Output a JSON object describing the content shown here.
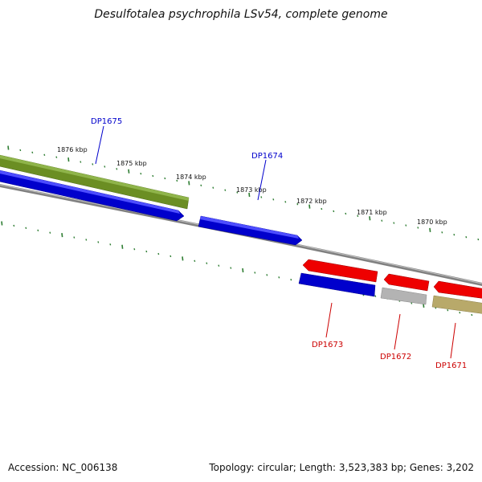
{
  "title": "Desulfotalea psychrophila LSv54, complete genome",
  "footer": {
    "accession": "Accession: NC_006138",
    "summary": "Topology: circular; Length: 3,523,383 bp; Genes: 3,202"
  },
  "colors": {
    "forward_gene": "#0000cc",
    "reverse_gene": "#dd0000",
    "olive_gene": "#6b8e23",
    "khaki_gene": "#b8a96a",
    "gray_gene": "#aaaaaa",
    "backbone": "#808080",
    "tick": "#2e7d32",
    "forward_label": "#0000cc",
    "reverse_label": "#cc0000"
  },
  "ruler_labels": [
    "1876 kbp",
    "1875 kbp",
    "1874 kbp",
    "1873 kbp",
    "1872 kbp",
    "1871 kbp",
    "1870 kbp"
  ],
  "gene_labels": {
    "forward": [
      "DP1675",
      "DP1674"
    ],
    "reverse": [
      "DP1673",
      "DP1672",
      "DP1671"
    ]
  }
}
